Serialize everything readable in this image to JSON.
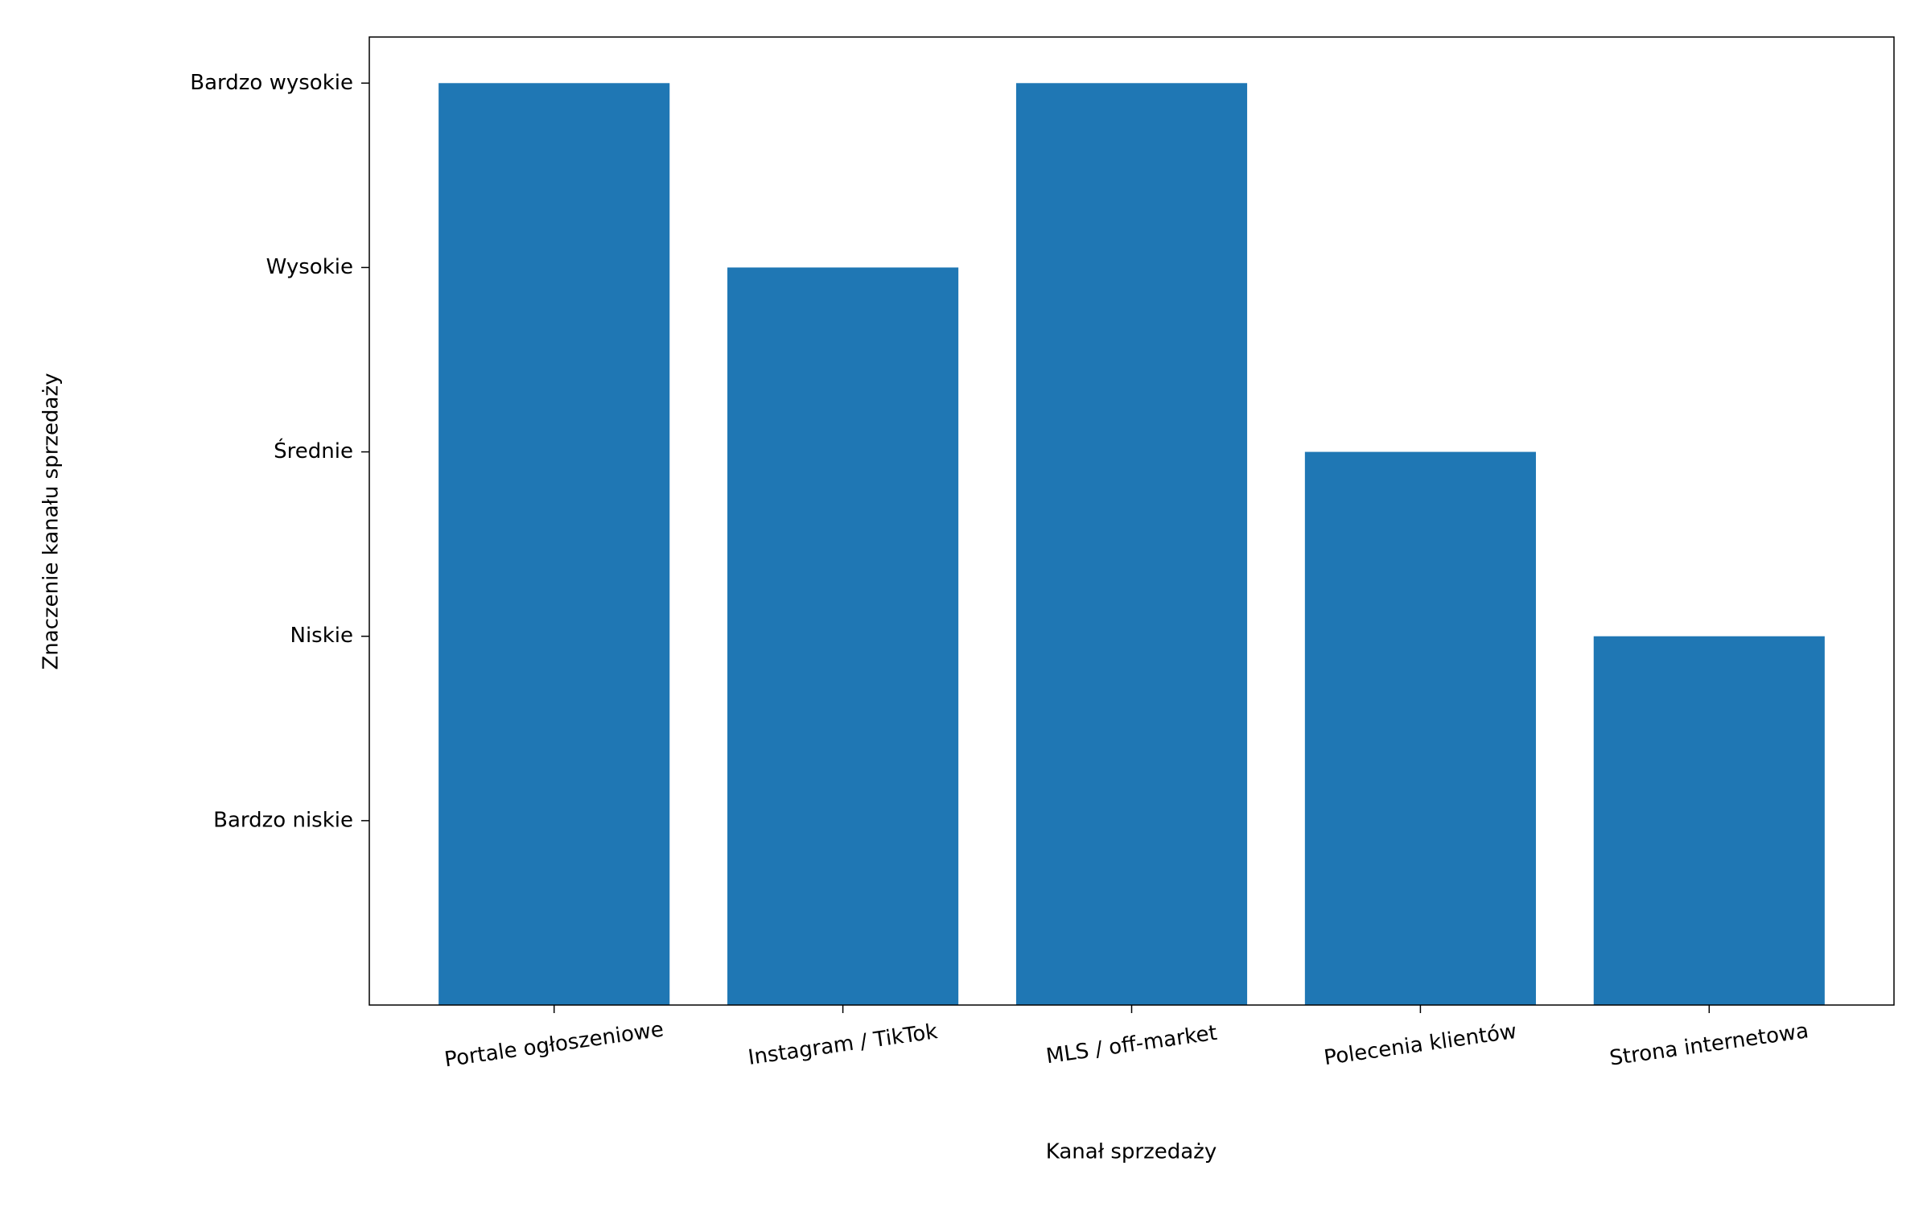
{
  "chart_data": {
    "type": "bar",
    "x_label": "Kanał sprzedaży",
    "y_label": "Znaczenie kanału sprzedaży",
    "categories": [
      "Portale ogłoszeniowe",
      "Instagram / TikTok",
      "MLS / off-market",
      "Polecenia klientów",
      "Strona internetowa"
    ],
    "values": [
      5,
      4,
      5,
      3,
      2
    ],
    "color": "#1f77b4",
    "ylim": [
      0,
      5.25
    ],
    "yticks": [
      {
        "value": 1,
        "label": "Bardzo niskie"
      },
      {
        "value": 2,
        "label": "Niskie"
      },
      {
        "value": 3,
        "label": "Średnie"
      },
      {
        "value": 4,
        "label": "Wysokie"
      },
      {
        "value": 5,
        "label": "Bardzo wysokie"
      }
    ],
    "grid": false
  }
}
